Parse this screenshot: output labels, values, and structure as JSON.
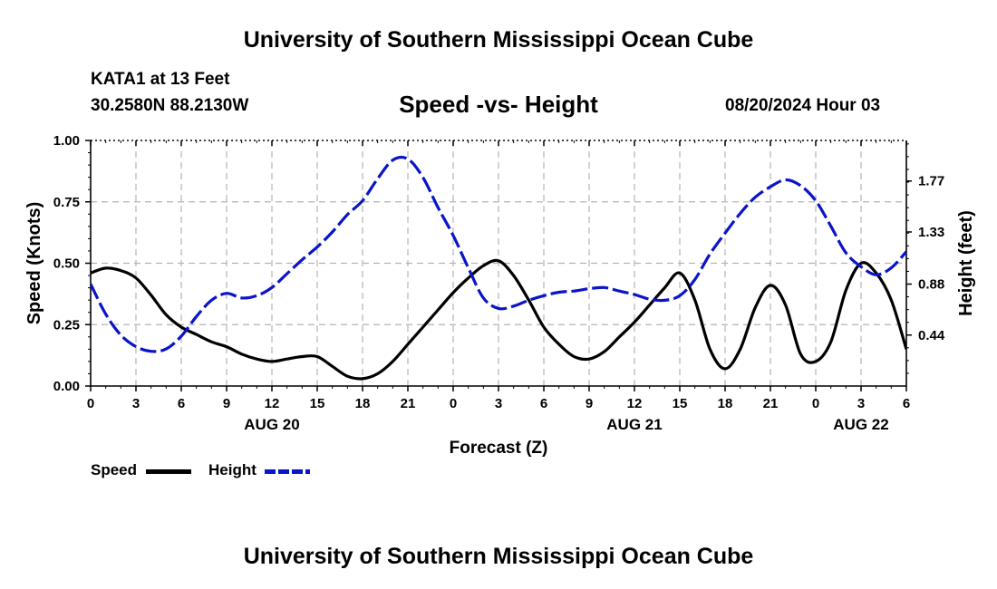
{
  "header": {
    "title_top": "University of Southern Mississippi Ocean Cube",
    "title_bottom": "University of Southern Mississippi Ocean Cube",
    "station": "KATA1 at 13 Feet",
    "coords": "30.2580N  88.2130W",
    "subtitle": "Speed -vs- Height",
    "datetime": "08/20/2024 Hour 03"
  },
  "legend": {
    "speed_label": "Speed",
    "height_label": "Height"
  },
  "colors": {
    "speed": "#000000",
    "height": "#0a14c8",
    "grid": "#b4b4b4"
  },
  "chart_data": {
    "type": "line",
    "xlabel": "Forecast (Z)",
    "ylabel_left": "Speed (Knots)",
    "ylabel_right": "Height (feet)",
    "x_range_hours": [
      0,
      54
    ],
    "x_ticks": [
      {
        "hour": 0,
        "label": "0"
      },
      {
        "hour": 3,
        "label": "3"
      },
      {
        "hour": 6,
        "label": "6"
      },
      {
        "hour": 9,
        "label": "9"
      },
      {
        "hour": 12,
        "label": "12"
      },
      {
        "hour": 15,
        "label": "15"
      },
      {
        "hour": 18,
        "label": "18"
      },
      {
        "hour": 21,
        "label": "21"
      },
      {
        "hour": 24,
        "label": "0"
      },
      {
        "hour": 27,
        "label": "3"
      },
      {
        "hour": 30,
        "label": "6"
      },
      {
        "hour": 33,
        "label": "9"
      },
      {
        "hour": 36,
        "label": "12"
      },
      {
        "hour": 39,
        "label": "15"
      },
      {
        "hour": 42,
        "label": "18"
      },
      {
        "hour": 45,
        "label": "21"
      },
      {
        "hour": 48,
        "label": "0"
      },
      {
        "hour": 51,
        "label": "3"
      },
      {
        "hour": 54,
        "label": "6"
      }
    ],
    "day_labels": [
      {
        "hour": 12,
        "label": "AUG 20"
      },
      {
        "hour": 36,
        "label": "AUG 21"
      },
      {
        "hour": 51,
        "label": "AUG 22"
      }
    ],
    "y_left": {
      "range": [
        0,
        1
      ],
      "ticks": [
        0,
        0.25,
        0.5,
        0.75,
        1.0
      ],
      "tick_labels": [
        "0.00",
        "0.25",
        "0.50",
        "0.75",
        "1.00"
      ]
    },
    "y_right": {
      "range": [
        0.0,
        2.12
      ],
      "ticks": [
        0.44,
        0.88,
        1.33,
        1.77
      ],
      "tick_labels": [
        "0.44",
        "0.88",
        "1.33",
        "1.77"
      ]
    },
    "series": [
      {
        "name": "Speed",
        "axis": "left",
        "x": [
          0,
          1,
          2,
          3,
          4,
          5,
          6,
          7,
          8,
          9,
          10,
          11,
          12,
          13,
          14,
          15,
          16,
          17,
          18,
          19,
          20,
          21,
          22,
          23,
          24,
          25,
          26,
          27,
          28,
          29,
          30,
          31,
          32,
          33,
          34,
          35,
          36,
          37,
          38,
          39,
          40,
          41,
          42,
          43,
          44,
          45,
          46,
          47,
          48,
          49,
          50,
          51,
          52,
          53,
          54
        ],
        "values": [
          0.46,
          0.48,
          0.47,
          0.44,
          0.37,
          0.29,
          0.24,
          0.21,
          0.18,
          0.16,
          0.13,
          0.11,
          0.1,
          0.11,
          0.12,
          0.12,
          0.08,
          0.04,
          0.03,
          0.05,
          0.1,
          0.17,
          0.24,
          0.31,
          0.38,
          0.44,
          0.49,
          0.51,
          0.45,
          0.35,
          0.24,
          0.17,
          0.12,
          0.11,
          0.14,
          0.2,
          0.26,
          0.33,
          0.4,
          0.46,
          0.35,
          0.15,
          0.07,
          0.15,
          0.32,
          0.41,
          0.33,
          0.13,
          0.1,
          0.18,
          0.39,
          0.5,
          0.46,
          0.35,
          0.15
        ]
      },
      {
        "name": "Height",
        "axis": "right",
        "x": [
          0,
          1,
          2,
          3,
          4,
          5,
          6,
          7,
          8,
          9,
          10,
          11,
          12,
          13,
          14,
          15,
          16,
          17,
          18,
          19,
          20,
          21,
          22,
          23,
          24,
          25,
          26,
          27,
          28,
          29,
          30,
          31,
          32,
          33,
          34,
          35,
          36,
          37,
          38,
          39,
          40,
          41,
          42,
          43,
          44,
          45,
          46,
          47,
          48,
          49,
          50,
          51,
          52,
          53,
          54
        ],
        "values": [
          0.88,
          0.62,
          0.44,
          0.34,
          0.3,
          0.32,
          0.43,
          0.6,
          0.74,
          0.8,
          0.76,
          0.78,
          0.85,
          0.97,
          1.09,
          1.2,
          1.33,
          1.48,
          1.6,
          1.79,
          1.95,
          1.96,
          1.8,
          1.54,
          1.3,
          1.02,
          0.76,
          0.67,
          0.69,
          0.74,
          0.78,
          0.81,
          0.82,
          0.84,
          0.85,
          0.82,
          0.79,
          0.75,
          0.74,
          0.78,
          0.92,
          1.14,
          1.32,
          1.49,
          1.63,
          1.72,
          1.78,
          1.73,
          1.6,
          1.38,
          1.15,
          1.03,
          0.96,
          1.02,
          1.16
        ]
      }
    ]
  }
}
